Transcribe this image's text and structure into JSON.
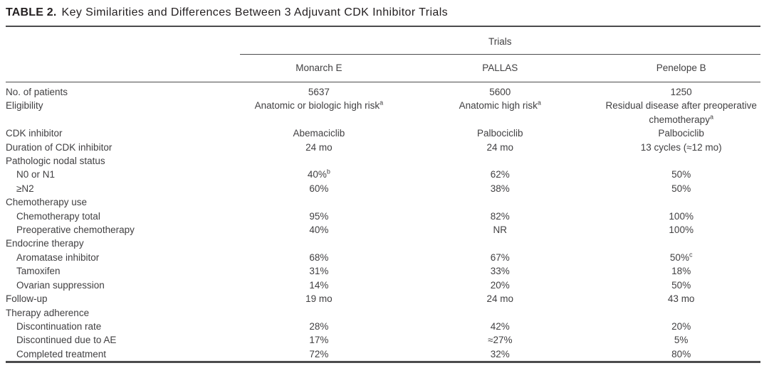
{
  "title": {
    "label": "TABLE 2.",
    "text": "Key Similarities and Differences Between 3 Adjuvant CDK Inhibitor Trials"
  },
  "table": {
    "group_header": "Trials",
    "columns": [
      "Monarch E",
      "PALLAS",
      "Penelope B"
    ],
    "rows": [
      {
        "label": "No. of patients",
        "indent": 0,
        "values": [
          {
            "text": "5637"
          },
          {
            "text": "5600"
          },
          {
            "text": "1250"
          }
        ]
      },
      {
        "label": "Eligibility",
        "indent": 0,
        "values": [
          {
            "text": "Anatomic or biologic high risk",
            "sup": "a"
          },
          {
            "text": "Anatomic high risk",
            "sup": "a"
          },
          {
            "text": "Residual disease after preoperative chemotherapy",
            "sup": "a"
          }
        ]
      },
      {
        "label": "CDK inhibitor",
        "indent": 0,
        "values": [
          {
            "text": "Abemaciclib"
          },
          {
            "text": "Palbociclib"
          },
          {
            "text": "Palbociclib"
          }
        ]
      },
      {
        "label": "Duration of CDK inhibitor",
        "indent": 0,
        "values": [
          {
            "text": "24 mo"
          },
          {
            "text": "24 mo"
          },
          {
            "text": "13 cycles (≈12 mo)"
          }
        ]
      },
      {
        "label": "Pathologic nodal status",
        "indent": 0,
        "section": true,
        "values": [
          {
            "text": ""
          },
          {
            "text": ""
          },
          {
            "text": ""
          }
        ]
      },
      {
        "label": "N0 or N1",
        "indent": 1,
        "values": [
          {
            "text": "40%",
            "sup": "b"
          },
          {
            "text": "62%"
          },
          {
            "text": "50%"
          }
        ]
      },
      {
        "label": "≥N2",
        "indent": 1,
        "values": [
          {
            "text": "60%"
          },
          {
            "text": "38%"
          },
          {
            "text": "50%"
          }
        ]
      },
      {
        "label": "Chemotherapy use",
        "indent": 0,
        "section": true,
        "values": [
          {
            "text": ""
          },
          {
            "text": ""
          },
          {
            "text": ""
          }
        ]
      },
      {
        "label": "Chemotherapy total",
        "indent": 1,
        "values": [
          {
            "text": "95%"
          },
          {
            "text": "82%"
          },
          {
            "text": "100%"
          }
        ]
      },
      {
        "label": "Preoperative chemotherapy",
        "indent": 1,
        "values": [
          {
            "text": "40%"
          },
          {
            "text": "NR"
          },
          {
            "text": "100%"
          }
        ]
      },
      {
        "label": "Endocrine therapy",
        "indent": 0,
        "section": true,
        "values": [
          {
            "text": ""
          },
          {
            "text": ""
          },
          {
            "text": ""
          }
        ]
      },
      {
        "label": "Aromatase inhibitor",
        "indent": 1,
        "values": [
          {
            "text": "68%"
          },
          {
            "text": "67%"
          },
          {
            "text": "50%",
            "sup": "c"
          }
        ]
      },
      {
        "label": "Tamoxifen",
        "indent": 1,
        "values": [
          {
            "text": "31%"
          },
          {
            "text": "33%"
          },
          {
            "text": "18%"
          }
        ]
      },
      {
        "label": "Ovarian suppression",
        "indent": 1,
        "values": [
          {
            "text": "14%"
          },
          {
            "text": "20%"
          },
          {
            "text": "50%"
          }
        ]
      },
      {
        "label": "Follow-up",
        "indent": 0,
        "values": [
          {
            "text": "19 mo"
          },
          {
            "text": "24 mo"
          },
          {
            "text": "43 mo"
          }
        ]
      },
      {
        "label": "Therapy adherence",
        "indent": 0,
        "section": true,
        "values": [
          {
            "text": ""
          },
          {
            "text": ""
          },
          {
            "text": ""
          }
        ]
      },
      {
        "label": "Discontinuation rate",
        "indent": 1,
        "values": [
          {
            "text": "28%"
          },
          {
            "text": "42%"
          },
          {
            "text": "20%"
          }
        ]
      },
      {
        "label": "Discontinued due to AE",
        "indent": 1,
        "values": [
          {
            "text": "17%"
          },
          {
            "text": "≈27%"
          },
          {
            "text": "5%"
          }
        ]
      },
      {
        "label": "Completed treatment",
        "indent": 1,
        "values": [
          {
            "text": "72%"
          },
          {
            "text": "32%"
          },
          {
            "text": "80%"
          }
        ]
      }
    ]
  },
  "colors": {
    "title_text": "#231f20",
    "body_text": "#414042",
    "rule": "#4b4b4d",
    "background": "#ffffff"
  }
}
